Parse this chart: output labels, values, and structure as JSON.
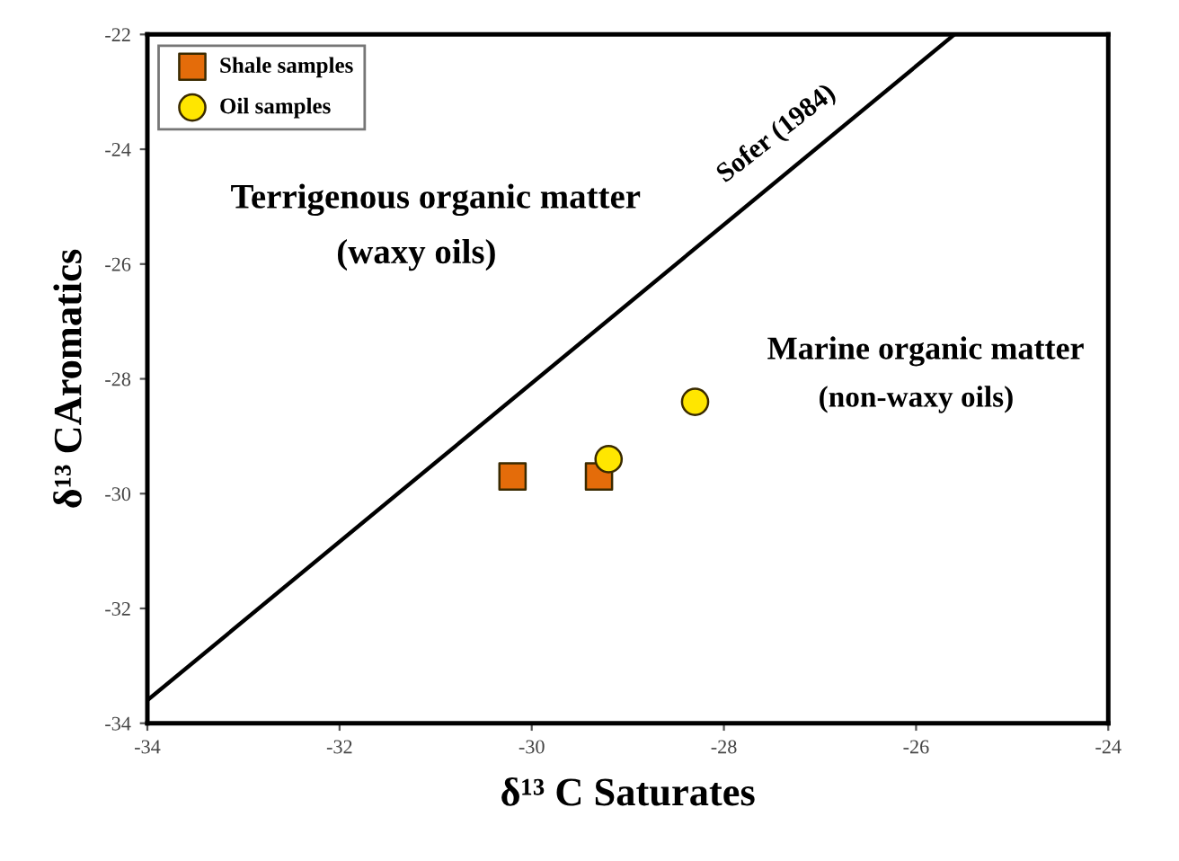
{
  "chart_data": {
    "type": "scatter",
    "xlabel": "δ¹³ C Saturates",
    "ylabel": "δ¹³ CAromatics",
    "xlim": [
      -34,
      -24
    ],
    "ylim": [
      -34,
      -22
    ],
    "xticks": [
      -34,
      -32,
      -30,
      -28,
      -26,
      -24
    ],
    "yticks": [
      -34,
      -32,
      -30,
      -28,
      -26,
      -24,
      -22
    ],
    "series": [
      {
        "name": "Shale samples",
        "color": "#e46c0a",
        "marker": "square",
        "x": [
          -30.2,
          -29.3
        ],
        "values": [
          -29.7,
          -29.7
        ]
      },
      {
        "name": "Oil samples",
        "color": "#ffe600",
        "marker": "circle",
        "x": [
          -29.2,
          -28.3
        ],
        "values": [
          -29.4,
          -28.4
        ]
      },
      {
        "type": "line",
        "color": "#000000",
        "marker": "none",
        "x": [
          -34,
          -25.6
        ],
        "values": [
          -33.6,
          -22
        ]
      }
    ],
    "annotations": [
      "Sofer (1984)",
      "Terrigenous organic matter",
      "(waxy oils)",
      "Marine organic matter",
      "(non-waxy oils)"
    ],
    "legend": "top left",
    "grid": false
  }
}
